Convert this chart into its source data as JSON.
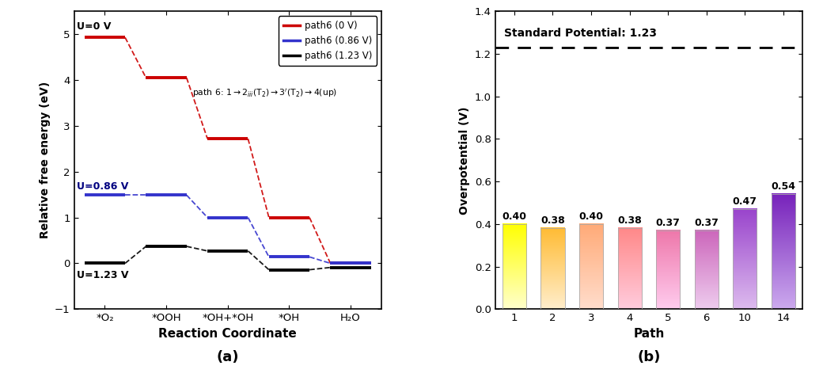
{
  "panel_a": {
    "title": "(a)",
    "xlabel": "Reaction Coordinate",
    "ylabel": "Relative free energy (eV)",
    "xlim": [
      -0.5,
      4.5
    ],
    "ylim": [
      -1,
      5.5
    ],
    "yticks": [
      -1,
      0,
      1,
      2,
      3,
      4,
      5
    ],
    "xtick_labels": [
      "*O₂",
      "*OOH",
      "*OH+*OH",
      "*OH",
      "H₂O"
    ],
    "xtick_positions": [
      0,
      1,
      2,
      3,
      4
    ],
    "label_U0": "U=0 V",
    "label_U086": "U=0.86 V",
    "label_U123": "U=1.23 V",
    "legend_labels": [
      "path6 (0 V)",
      "path6 (0.86 V)",
      "path6 (1.23 V)"
    ],
    "legend_colors": [
      "#cc0000",
      "#3333cc",
      "#000000"
    ],
    "segments_red": [
      [
        0,
        4.93
      ],
      [
        1,
        4.05
      ],
      [
        2,
        2.72
      ],
      [
        3,
        1.0
      ],
      [
        4,
        0.0
      ]
    ],
    "segments_blue": [
      [
        0,
        1.49
      ],
      [
        1,
        1.49
      ],
      [
        2,
        1.0
      ],
      [
        3,
        0.14
      ],
      [
        4,
        0.0
      ]
    ],
    "segments_black": [
      [
        0,
        0.0
      ],
      [
        1,
        0.37
      ],
      [
        2,
        0.27
      ],
      [
        3,
        -0.14
      ],
      [
        4,
        -0.09
      ]
    ]
  },
  "panel_b": {
    "title": "(b)",
    "xlabel": "Path",
    "ylabel": "Overpotential (V)",
    "ylim": [
      0,
      1.4
    ],
    "yticks": [
      0.0,
      0.2,
      0.4,
      0.6,
      0.8,
      1.0,
      1.2,
      1.4
    ],
    "standard_potential": 1.23,
    "standard_label": "Standard Potential: 1.23",
    "paths": [
      "1",
      "2",
      "3",
      "4",
      "5",
      "6",
      "10",
      "14"
    ],
    "values": [
      0.4,
      0.38,
      0.4,
      0.38,
      0.37,
      0.37,
      0.47,
      0.54
    ],
    "bar_top_colors": [
      "#ffff00",
      "#ffbb33",
      "#ffaa77",
      "#ff8888",
      "#ee77aa",
      "#cc66bb",
      "#9944cc",
      "#7722bb"
    ],
    "bar_bot_colors": [
      "#ffffcc",
      "#ffeecc",
      "#ffddcc",
      "#ffccdd",
      "#ffccee",
      "#eeccee",
      "#ddbbee",
      "#ccaaee"
    ]
  }
}
